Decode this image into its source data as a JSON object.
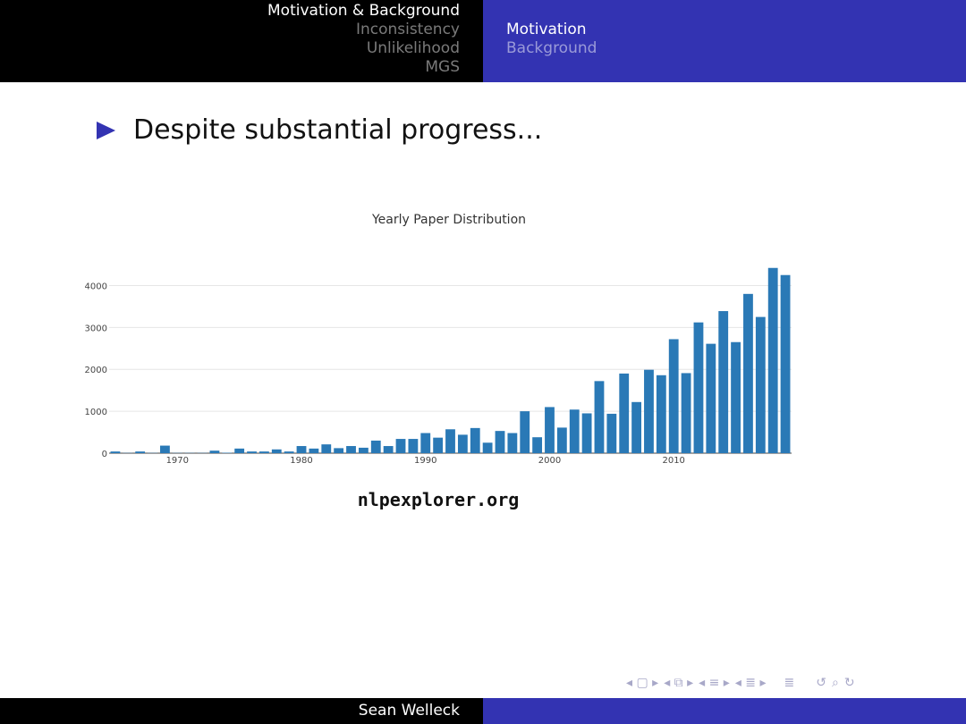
{
  "header": {
    "sections": [
      {
        "label": "Motivation & Background",
        "active": true
      },
      {
        "label": "Inconsistency",
        "active": false
      },
      {
        "label": "Unlikelihood",
        "active": false
      },
      {
        "label": "MGS",
        "active": false
      }
    ],
    "subsections": [
      {
        "label": "Motivation",
        "active": true
      },
      {
        "label": "Background",
        "active": false
      }
    ]
  },
  "slide": {
    "bullet": "Despite substantial progress...",
    "link": "nlpexplorer.org"
  },
  "chart_data": {
    "type": "bar",
    "title": "Yearly Paper Distribution",
    "xlabel": "",
    "ylabel": "",
    "x": [
      1965,
      1966,
      1967,
      1968,
      1969,
      1970,
      1971,
      1972,
      1973,
      1974,
      1975,
      1976,
      1977,
      1978,
      1979,
      1980,
      1981,
      1982,
      1983,
      1984,
      1985,
      1986,
      1987,
      1988,
      1989,
      1990,
      1991,
      1992,
      1993,
      1994,
      1995,
      1996,
      1997,
      1998,
      1999,
      2000,
      2001,
      2002,
      2003,
      2004,
      2005,
      2006,
      2007,
      2008,
      2009,
      2010,
      2011,
      2012,
      2013,
      2014,
      2015,
      2016,
      2017,
      2018,
      2019
    ],
    "values": [
      40,
      5,
      40,
      5,
      180,
      5,
      5,
      5,
      60,
      10,
      110,
      40,
      40,
      90,
      40,
      170,
      110,
      210,
      120,
      170,
      130,
      300,
      170,
      340,
      340,
      480,
      370,
      570,
      440,
      600,
      250,
      530,
      480,
      1000,
      380,
      1100,
      610,
      1040,
      950,
      1720,
      940,
      1900,
      1220,
      1990,
      1860,
      2720,
      1910,
      3120,
      2610,
      3390,
      2650,
      3800,
      3250,
      4420,
      4250
    ],
    "xticks": [
      1970,
      1980,
      1990,
      2000,
      2010
    ],
    "yticks": [
      0,
      1000,
      2000,
      3000,
      4000
    ],
    "ylim": [
      0,
      4500
    ],
    "grid": true,
    "bar_color": "#2a79b6"
  },
  "footer": {
    "author": "Sean Welleck"
  },
  "navigation": {
    "icons": [
      "nav-frame-icon",
      "nav-subsection-icon",
      "nav-section-icon",
      "nav-slide-icon",
      "nav-align-icon",
      "nav-back-icon",
      "nav-search-icon",
      "nav-forward-icon"
    ]
  }
}
